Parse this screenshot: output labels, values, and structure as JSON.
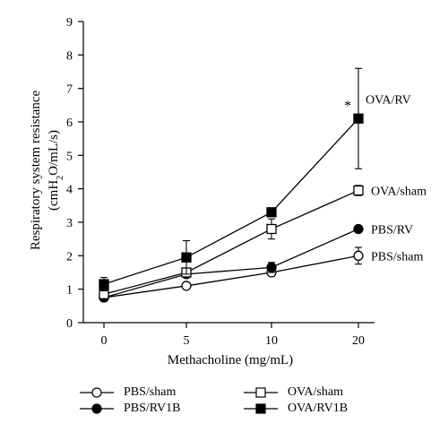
{
  "chart_data": {
    "type": "line",
    "xlabel": "Methacholine (mg/mL)",
    "ylabel_line1": "Respiratory system resistance",
    "ylabel_line2_prefix": "(cmH",
    "ylabel_line2_sub": "2",
    "ylabel_line2_suffix": "O/mL/s)",
    "xticks": [
      "0",
      "5",
      "10",
      "20"
    ],
    "yticks": [
      "0",
      "1",
      "2",
      "3",
      "4",
      "5",
      "6",
      "7",
      "8",
      "9"
    ],
    "ylim": [
      0,
      9
    ],
    "x": [
      0,
      5,
      10,
      20
    ],
    "grid": false,
    "series": [
      {
        "name": "PBS/sham",
        "marker": "open-circle",
        "values": [
          0.75,
          1.1,
          1.5,
          2.0
        ],
        "errors": [
          0.05,
          0.07,
          0.1,
          0.25
        ],
        "label": "PBS/sham"
      },
      {
        "name": "PBS/RV1B",
        "marker": "filled-circle",
        "values": [
          0.75,
          1.45,
          1.65,
          2.8
        ],
        "errors": [
          0.05,
          0.08,
          0.15,
          0.08
        ],
        "label": "PBS/RV"
      },
      {
        "name": "OVA/sham",
        "marker": "open-square",
        "values": [
          0.85,
          1.5,
          2.8,
          3.95
        ],
        "errors": [
          0.05,
          0.1,
          0.3,
          0.15
        ],
        "label": "OVA/sham"
      },
      {
        "name": "OVA/RV1B",
        "marker": "filled-square",
        "values": [
          1.15,
          1.95,
          3.3,
          6.1
        ],
        "errors": [
          0.2,
          0.5,
          0.08,
          1.5
        ],
        "label": "OVA/RV"
      }
    ],
    "annotations": [
      {
        "text": "*",
        "x": 20,
        "y": 6.45
      }
    ],
    "legend": {
      "placement": "bottom",
      "items": [
        {
          "label": "PBS/sham",
          "marker": "open-circle"
        },
        {
          "label": "OVA/sham",
          "marker": "open-square"
        },
        {
          "label": "PBS/RV1B",
          "marker": "filled-circle"
        },
        {
          "label": "OVA/RV1B",
          "marker": "filled-square"
        }
      ]
    }
  }
}
